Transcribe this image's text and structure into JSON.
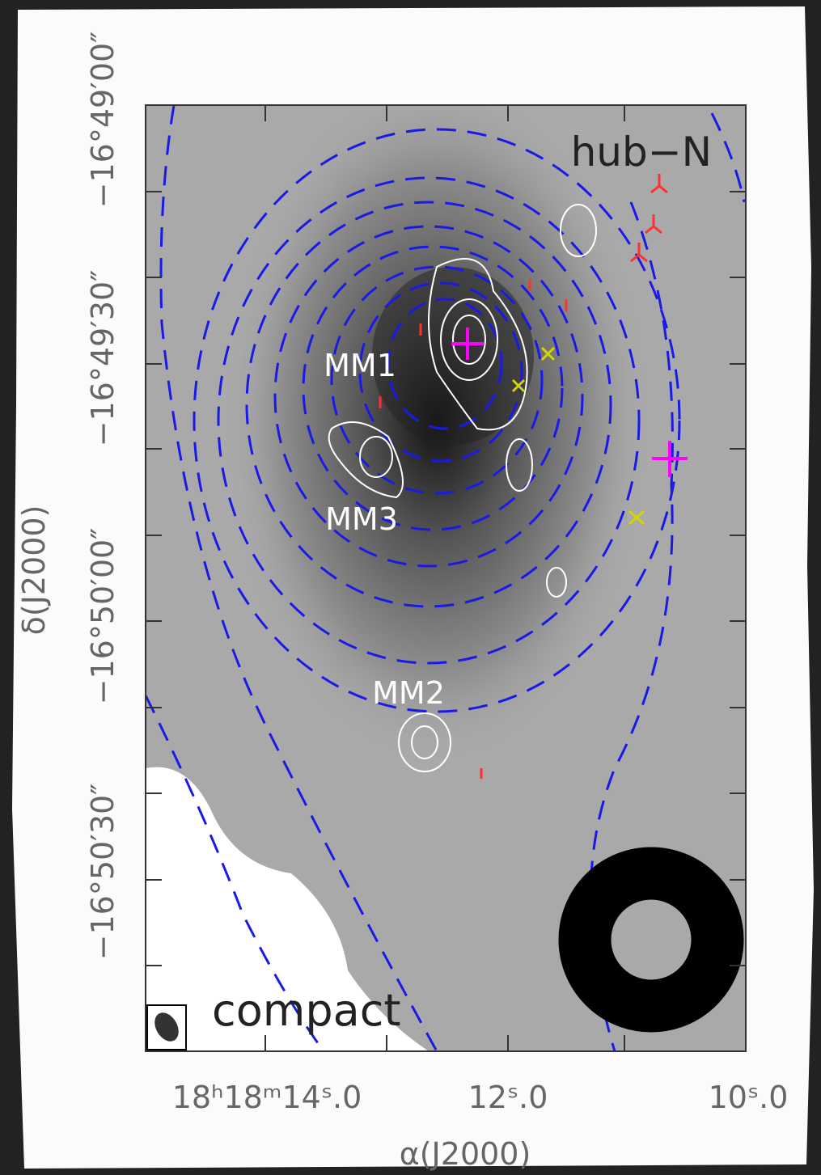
{
  "figure": {
    "title": "hub−N",
    "sources": [
      "MM1",
      "MM3",
      "MM2"
    ],
    "beam_label": "compact",
    "x_axis": {
      "title": "α(J2000)",
      "tick_labels": [
        "18ʰ18ᵐ14ˢ.0",
        "12ˢ.0",
        "10ˢ.0"
      ]
    },
    "y_axis": {
      "title": "δ(J2000)",
      "tick_labels": [
        "−16°49′00″",
        "−16°49′30″",
        "−16°50′00″",
        "−16°50′30″"
      ]
    }
  }
}
